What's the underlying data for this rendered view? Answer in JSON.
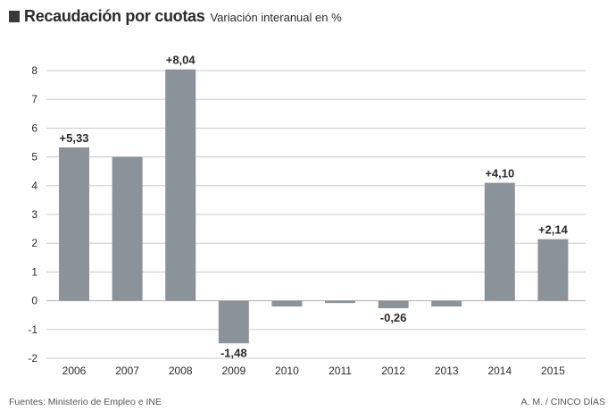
{
  "header": {
    "title": "Recaudación por cuotas",
    "subtitle": "Variación interanual en %"
  },
  "footer": {
    "source": "Fuentes: Ministerio de Empleo e INE",
    "credit": "A. M. / CINCO DÍAS"
  },
  "colors": {
    "bar": "#8a9399",
    "grid": "#c8c8c8",
    "zero_line": "#b0b0b0",
    "text": "#2a2a2a"
  },
  "chart_data": {
    "type": "bar",
    "categories": [
      "2006",
      "2007",
      "2008",
      "2009",
      "2010",
      "2011",
      "2012",
      "2013",
      "2014",
      "2015"
    ],
    "values": [
      5.33,
      5.0,
      8.04,
      -1.48,
      -0.2,
      -0.08,
      -0.26,
      -0.2,
      4.1,
      2.14
    ],
    "data_labels": [
      "+5,33",
      "",
      "+8,04",
      "-1,48",
      "",
      "",
      "-0,26",
      "",
      "+4,10",
      "+2,14"
    ],
    "yticks": [
      "-2",
      "-1",
      "0",
      "1",
      "2",
      "3",
      "4",
      "5",
      "6",
      "7",
      "8"
    ],
    "ylim": [
      -2,
      8
    ],
    "grid": true
  }
}
